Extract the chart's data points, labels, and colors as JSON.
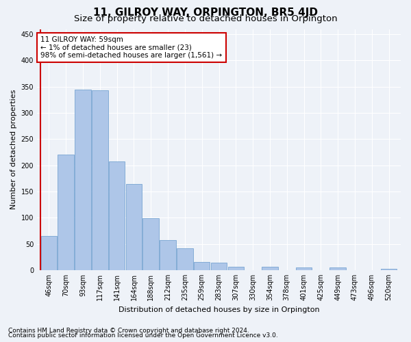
{
  "title": "11, GILROY WAY, ORPINGTON, BR5 4JD",
  "subtitle": "Size of property relative to detached houses in Orpington",
  "xlabel": "Distribution of detached houses by size in Orpington",
  "ylabel": "Number of detached properties",
  "categories": [
    "46sqm",
    "70sqm",
    "93sqm",
    "117sqm",
    "141sqm",
    "164sqm",
    "188sqm",
    "212sqm",
    "235sqm",
    "259sqm",
    "283sqm",
    "307sqm",
    "330sqm",
    "354sqm",
    "378sqm",
    "401sqm",
    "425sqm",
    "449sqm",
    "473sqm",
    "496sqm",
    "520sqm"
  ],
  "values": [
    65,
    220,
    345,
    343,
    208,
    165,
    99,
    57,
    42,
    15,
    14,
    6,
    0,
    7,
    0,
    5,
    0,
    5,
    0,
    0,
    2
  ],
  "bar_color": "#aec6e8",
  "bar_edge_color": "#6699cc",
  "highlight_color": "#cc0000",
  "annotation_text": "11 GILROY WAY: 59sqm\n← 1% of detached houses are smaller (23)\n98% of semi-detached houses are larger (1,561) →",
  "annotation_box_color": "#ffffff",
  "annotation_box_edgecolor": "#cc0000",
  "ylim": [
    0,
    460
  ],
  "yticks": [
    0,
    50,
    100,
    150,
    200,
    250,
    300,
    350,
    400,
    450
  ],
  "footer_line1": "Contains HM Land Registry data © Crown copyright and database right 2024.",
  "footer_line2": "Contains public sector information licensed under the Open Government Licence v3.0.",
  "background_color": "#eef2f8",
  "grid_color": "#ffffff",
  "title_fontsize": 11,
  "subtitle_fontsize": 9.5,
  "axis_label_fontsize": 8,
  "tick_fontsize": 7,
  "annotation_fontsize": 7.5,
  "footer_fontsize": 6.5
}
